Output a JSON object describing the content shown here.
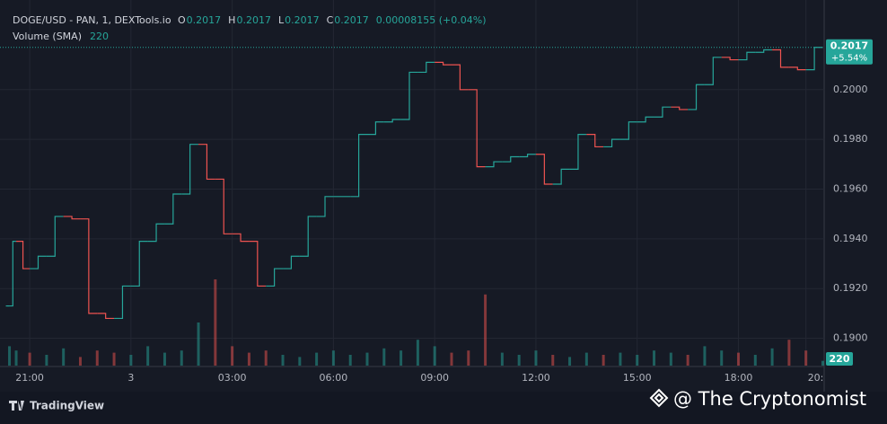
{
  "chart_data": {
    "type": "line",
    "title": "DOGE/USD - PAN, 1, DEXTools.io",
    "ohlc": [
      {
        "key": "O",
        "value": "0.2017"
      },
      {
        "key": "H",
        "value": "0.2017"
      },
      {
        "key": "L",
        "value": "0.2017"
      },
      {
        "key": "C",
        "value": "0.2017"
      }
    ],
    "change": "0.00008155 (+0.04%)",
    "volume_title": "Volume (SMA)",
    "volume_last": 220,
    "last_price": 0.2017,
    "change_label": "+5.54%",
    "branding": "TradingView",
    "watermark": "@ The Cryptonomist",
    "up_color": "#26a69a",
    "down_color": "#ef5350",
    "grid": true,
    "x": [
      -0.6,
      -0.4,
      0,
      0.5,
      1,
      1.5,
      2,
      2.5,
      3,
      3.5,
      4,
      4.5,
      5,
      5.5,
      6,
      6.5,
      7,
      7.5,
      8,
      8.5,
      9,
      9.5,
      10,
      10.5,
      11,
      11.5,
      12,
      12.5,
      13,
      13.5,
      14,
      14.5,
      15,
      15.5,
      16,
      16.5,
      17,
      17.5,
      18,
      18.5,
      19,
      19.5,
      20,
      20.5,
      21,
      21.5,
      22,
      22.5,
      23,
      23.5
    ],
    "series": [
      {
        "name": "DOGE/USD",
        "values": [
          0.1913,
          0.1939,
          0.1928,
          0.1933,
          0.1949,
          0.1948,
          0.191,
          0.1908,
          0.1921,
          0.1939,
          0.1946,
          0.1958,
          0.1978,
          0.1964,
          0.1942,
          0.1939,
          0.1921,
          0.1928,
          0.1933,
          0.1949,
          0.1957,
          0.1957,
          0.1982,
          0.1987,
          0.1988,
          0.2007,
          0.2011,
          0.201,
          0.2,
          0.1969,
          0.1971,
          0.1973,
          0.1974,
          0.1962,
          0.1968,
          0.1982,
          0.1977,
          0.198,
          0.1987,
          0.1989,
          0.1993,
          0.1992,
          0.2002,
          0.2013,
          0.2012,
          0.2015,
          0.2016,
          0.2009,
          0.2008,
          0.2017
        ]
      },
      {
        "name": "Volume",
        "values": [
          900,
          700,
          600,
          500,
          800,
          400,
          700,
          600,
          500,
          900,
          600,
          700,
          2000,
          4000,
          900,
          600,
          700,
          500,
          400,
          600,
          700,
          500,
          600,
          800,
          700,
          1200,
          900,
          600,
          700,
          3300,
          600,
          500,
          700,
          500,
          400,
          600,
          500,
          600,
          500,
          700,
          600,
          500,
          900,
          700,
          600,
          500,
          800,
          1200,
          700,
          220
        ]
      }
    ],
    "volume_ylim": [
      0,
      5000
    ],
    "xlim": [
      -0.88,
      23.54
    ],
    "ylim": [
      0.1889,
      0.2031
    ],
    "xticks": [
      {
        "value": 0,
        "label": "21:00"
      },
      3,
      {
        "value": 6,
        "label": "03:00"
      },
      {
        "value": 9,
        "label": "06:00"
      },
      {
        "value": 12,
        "label": "09:00"
      },
      {
        "value": 15,
        "label": "12:00"
      },
      {
        "value": 18,
        "label": "15:00"
      },
      {
        "value": 21,
        "label": "18:00"
      },
      {
        "value": 23,
        "label": "20:"
      }
    ],
    "yticks": [
      {
        "value": 0.19,
        "label": "0.1900"
      },
      {
        "value": 0.192,
        "label": "0.1920"
      },
      {
        "value": 0.194,
        "label": "0.1940"
      },
      {
        "value": 0.196,
        "label": "0.1960"
      },
      {
        "value": 0.198,
        "label": "0.1980"
      },
      {
        "value": 0.2,
        "label": "0.2000"
      }
    ]
  }
}
